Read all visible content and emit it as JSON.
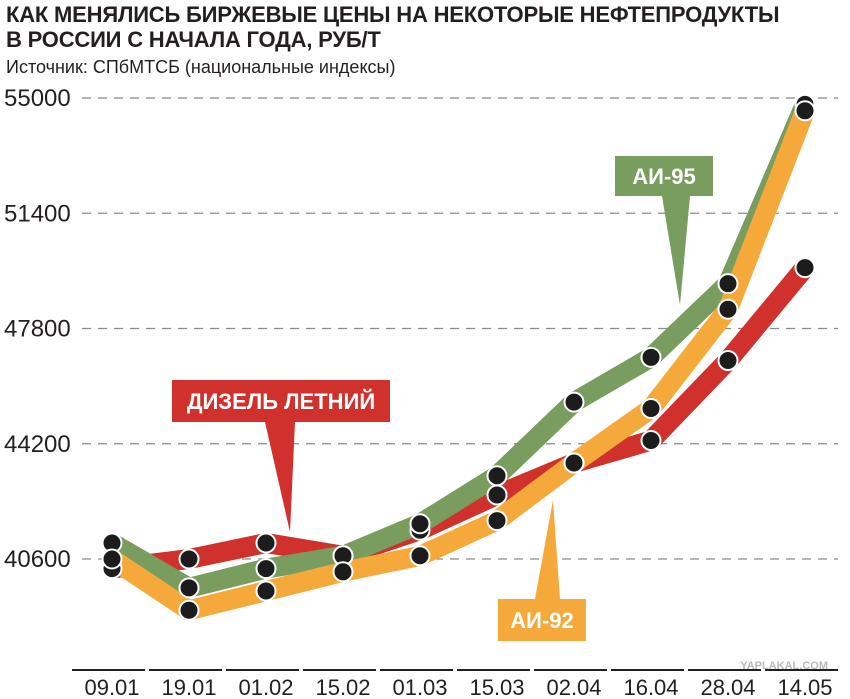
{
  "chart_data": {
    "type": "line",
    "title_line1": "КАК МЕНЯЛИСЬ БИРЖЕВЫЕ ЦЕНЫ НА НЕКОТОРЫЕ НЕФТЕПРОДУКТЫ",
    "title_line2": "В РОССИИ С НАЧАЛА ГОДА, РУБ/Т",
    "subtitle": "Источник: СПбМТСБ (национальные индексы)",
    "categories": [
      "09.01",
      "19.01",
      "01.02",
      "15.02",
      "01.03",
      "15.03",
      "02.04",
      "16.04",
      "28.04",
      "14.05"
    ],
    "yticks": [
      "55000",
      "51400",
      "47800",
      "44200",
      "40600"
    ],
    "ylim": [
      37000,
      55400
    ],
    "grid": true,
    "series": [
      {
        "name": "ДИЗЕЛЬ ЛЕТНИЙ",
        "color": "#d0312d",
        "values": [
          40300,
          40600,
          41100,
          40700,
          41500,
          42600,
          43600,
          44300,
          46800,
          49700
        ]
      },
      {
        "name": "АИ-95",
        "color": "#789d5f",
        "values": [
          41100,
          39700,
          40300,
          40700,
          41700,
          43200,
          45500,
          46900,
          49200,
          54800
        ]
      },
      {
        "name": "АИ-92",
        "color": "#f6a93b",
        "values": [
          40600,
          39000,
          39600,
          40200,
          40700,
          41800,
          43600,
          45300,
          48400,
          54600
        ]
      }
    ],
    "labels": {
      "diesel": "ДИЗЕЛЬ ЛЕТНИЙ",
      "ai95": "АИ-95",
      "ai92": "АИ-92"
    }
  },
  "watermark": "YAPLAKAL.COM"
}
